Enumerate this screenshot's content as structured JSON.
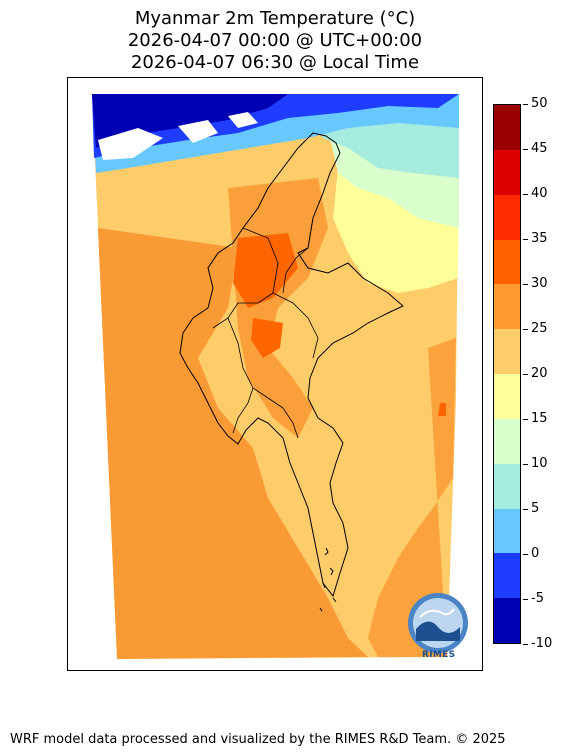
{
  "title": {
    "line1": "Myanmar 2m Temperature (°C)",
    "line2": "2026-04-07 00:00 @ UTC+00:00",
    "line3": "2026-04-07 06:30 @ Local Time"
  },
  "colorbar": {
    "ticks": [
      "50",
      "45",
      "40",
      "35",
      "30",
      "25",
      "20",
      "15",
      "10",
      "5",
      "0",
      "-5",
      "-10"
    ],
    "colors": [
      "#9b0000",
      "#dd0000",
      "#ff2a00",
      "#ff6000",
      "#ff9a30",
      "#ffcc6a",
      "#ffff99",
      "#d9ffcc",
      "#a5ecdf",
      "#66c8ff",
      "#1f3dff",
      "#0000b4"
    ],
    "colors_order": "top-to-bottom"
  },
  "map_colors": {
    "orange": "#fa9a35",
    "light_orange": "#ffcc6a",
    "dark_orange": "#ff6600",
    "yellow": "#ffff99",
    "light_green": "#d9ffcc",
    "teal": "#a5ecdf",
    "light_blue": "#66c8ff",
    "blue": "#1f3dff",
    "navy": "#0000b4"
  },
  "logo": {
    "text": "RIMES"
  },
  "footer": "WRF model data processed and visualized by the RIMES R&D Team. © 2025"
}
